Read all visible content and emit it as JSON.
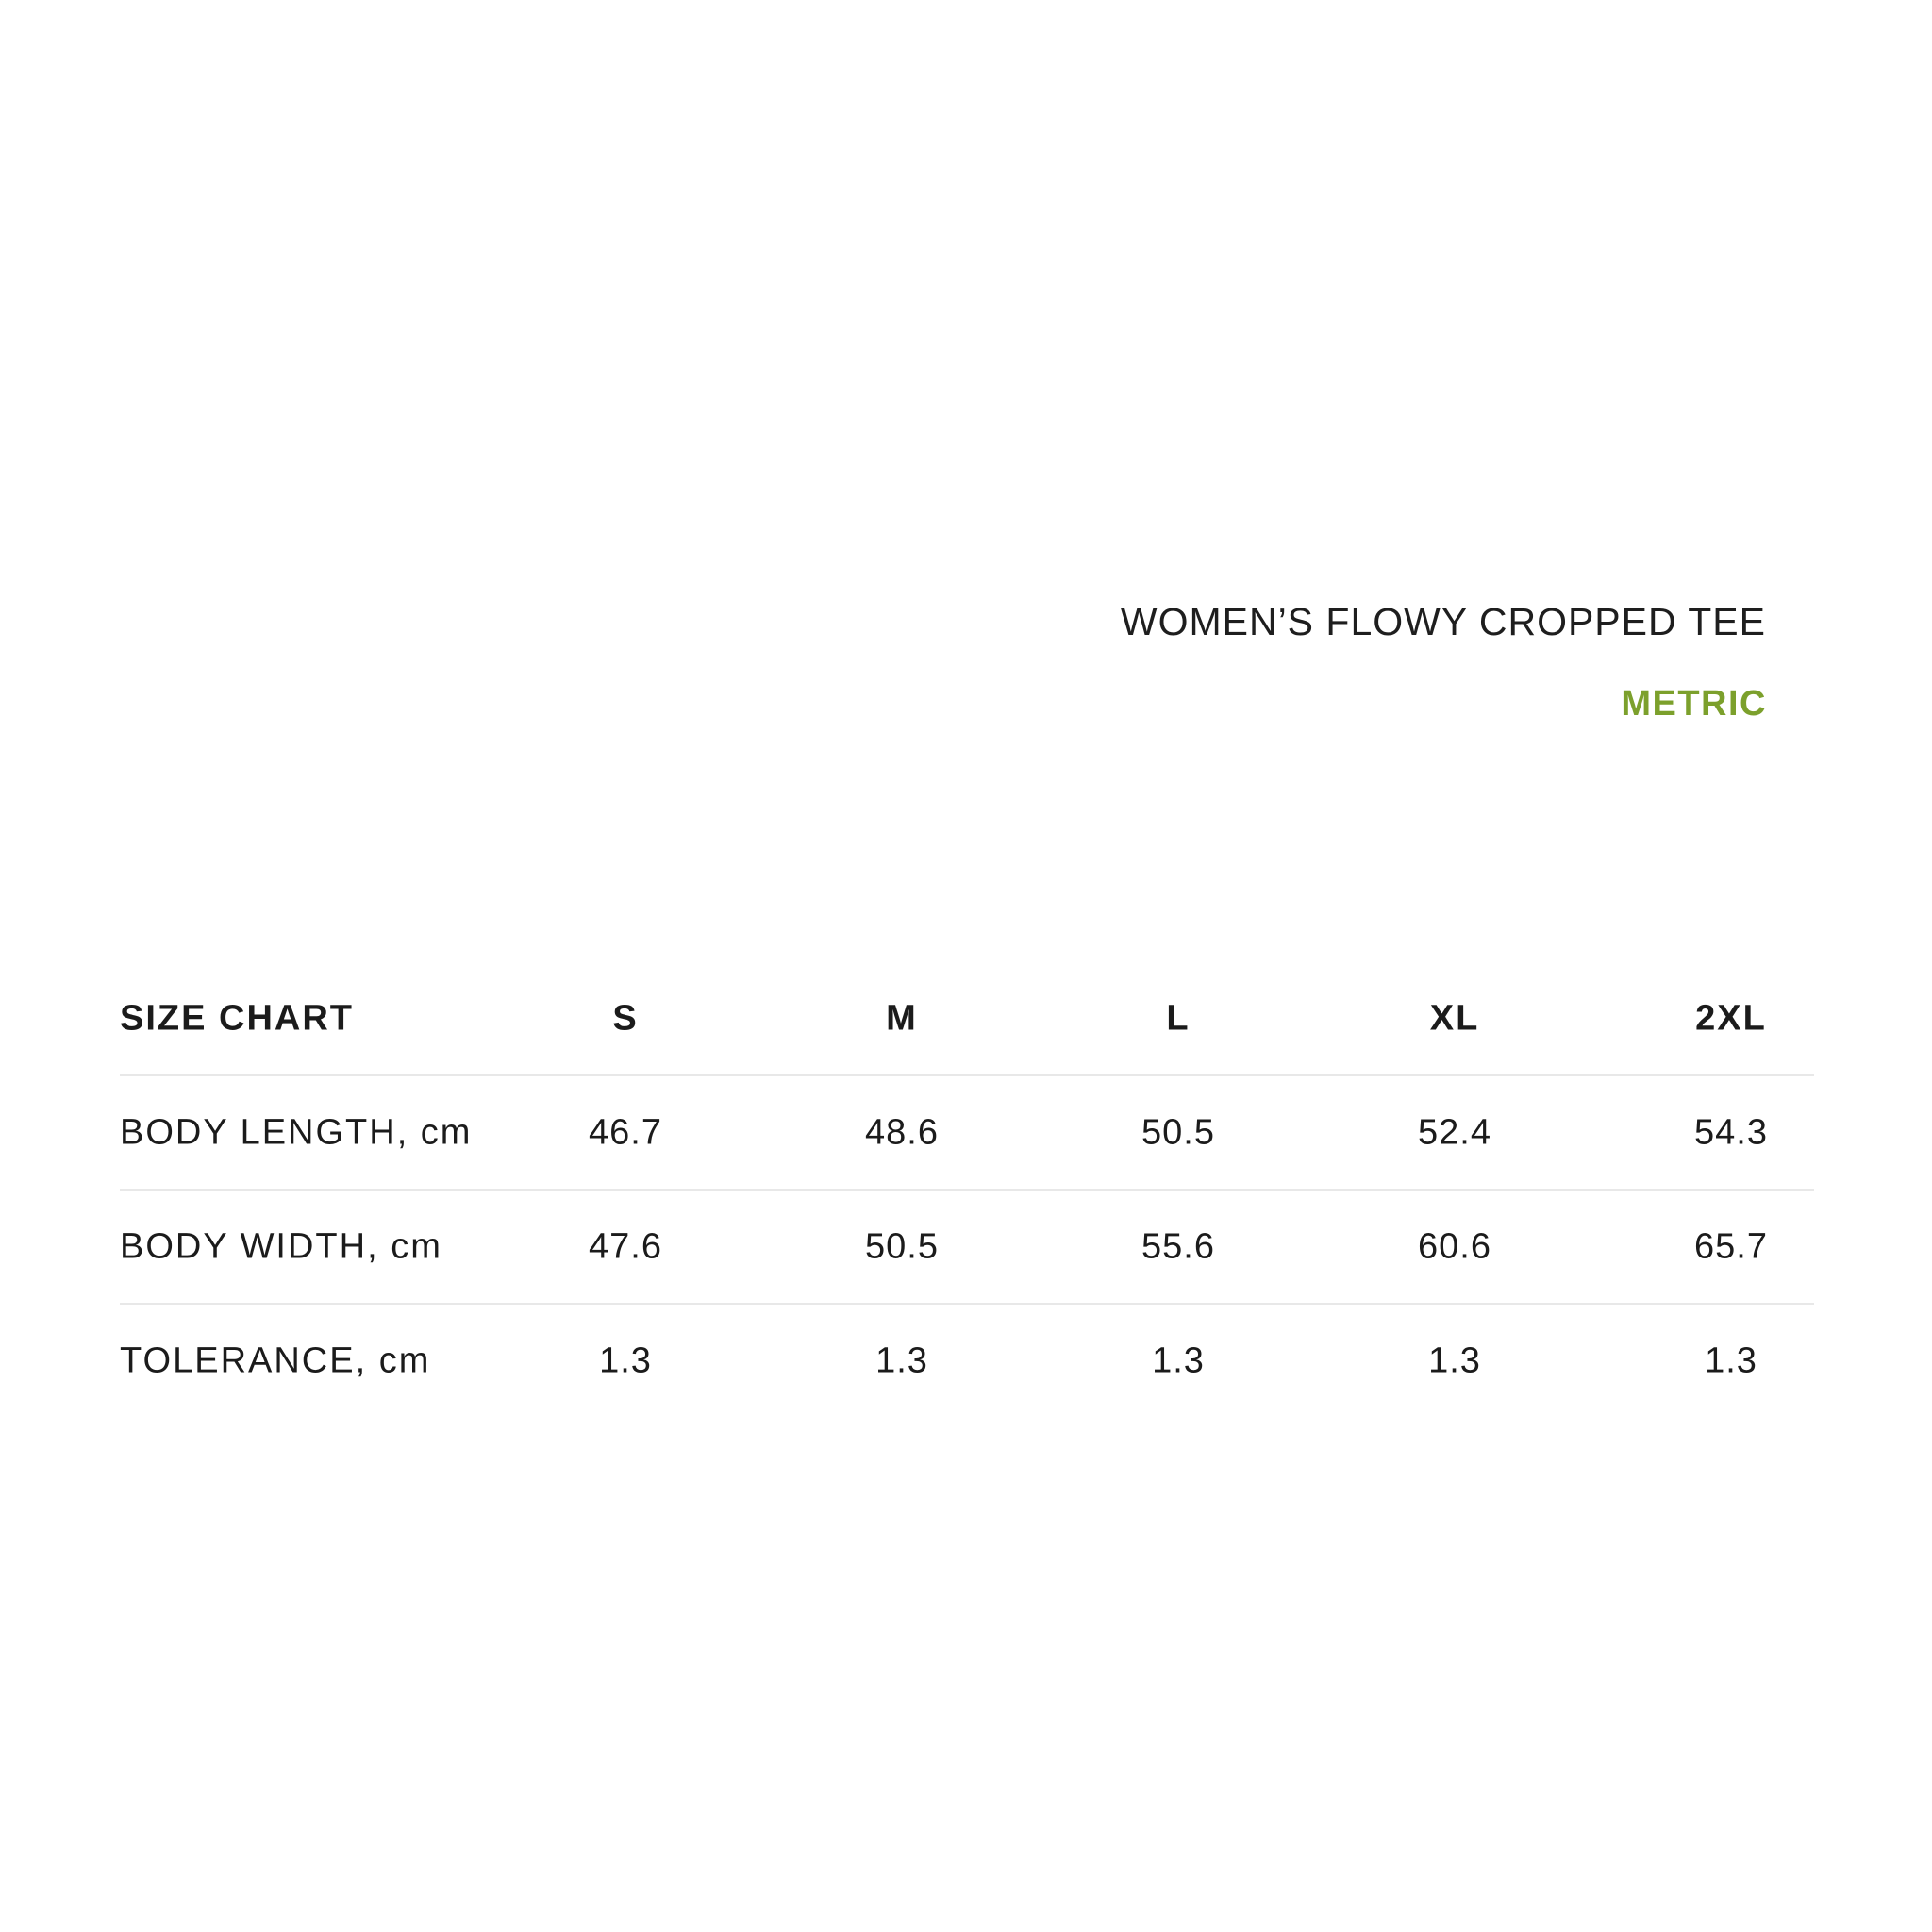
{
  "page": {
    "background_color": "#ffffff",
    "text_color": "#1b1b1b",
    "accent_green": "#7ca02c",
    "divider_color": "#e8e8e8"
  },
  "header": {
    "product_title": "WOMEN’S FLOWY CROPPED TEE",
    "unit_toggle_label": "METRIC"
  },
  "size_table": {
    "title": "SIZE CHART",
    "size_columns": [
      "S",
      "M",
      "L",
      "XL",
      "2XL"
    ],
    "rows": [
      {
        "label": "BODY LENGTH, cm",
        "values": [
          "46.7",
          "48.6",
          "50.5",
          "52.4",
          "54.3"
        ]
      },
      {
        "label": "BODY WIDTH, cm",
        "values": [
          "47.6",
          "50.5",
          "55.6",
          "60.6",
          "65.7"
        ]
      },
      {
        "label": "TOLERANCE, cm",
        "values": [
          "1.3",
          "1.3",
          "1.3",
          "1.3",
          "1.3"
        ]
      }
    ]
  },
  "chart_data": {
    "type": "table",
    "title": "SIZE CHART",
    "columns": [
      "S",
      "M",
      "L",
      "XL",
      "2XL"
    ],
    "rows": [
      {
        "label": "BODY LENGTH, cm",
        "values": [
          46.7,
          48.6,
          50.5,
          52.4,
          54.3
        ]
      },
      {
        "label": "BODY WIDTH, cm",
        "values": [
          47.6,
          50.5,
          55.6,
          60.6,
          65.7
        ]
      },
      {
        "label": "TOLERANCE, cm",
        "values": [
          1.3,
          1.3,
          1.3,
          1.3,
          1.3
        ]
      }
    ]
  }
}
